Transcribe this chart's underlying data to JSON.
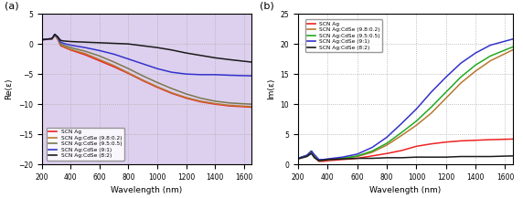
{
  "wavelength_min": 200,
  "wavelength_max": 1650,
  "panel_a": {
    "title": "(a)",
    "ylabel": "Re(ε)",
    "xlabel": "Wavelength (nm)",
    "ylim": [
      -20,
      5
    ],
    "yticks": [
      -20,
      -15,
      -10,
      -5,
      0,
      5
    ],
    "bg_color": "#ddd0ee",
    "series": [
      {
        "label": "SCN Ag",
        "color": "#ee2222",
        "lw": 1.1,
        "re_points": [
          [
            200,
            0.7
          ],
          [
            270,
            0.8
          ],
          [
            290,
            1.5
          ],
          [
            310,
            0.8
          ],
          [
            330,
            -0.3
          ],
          [
            350,
            -0.5
          ],
          [
            400,
            -1.0
          ],
          [
            500,
            -1.8
          ],
          [
            600,
            -2.8
          ],
          [
            700,
            -3.8
          ],
          [
            800,
            -4.9
          ],
          [
            900,
            -6.1
          ],
          [
            1000,
            -7.2
          ],
          [
            1100,
            -8.2
          ],
          [
            1200,
            -9.0
          ],
          [
            1300,
            -9.6
          ],
          [
            1400,
            -10.0
          ],
          [
            1500,
            -10.3
          ],
          [
            1650,
            -10.5
          ]
        ]
      },
      {
        "label": "SCN Ag:CdSe (9.8:0.2)",
        "color": "#b87830",
        "lw": 1.1,
        "re_points": [
          [
            200,
            0.7
          ],
          [
            270,
            0.8
          ],
          [
            290,
            1.5
          ],
          [
            310,
            0.8
          ],
          [
            330,
            -0.2
          ],
          [
            350,
            -0.4
          ],
          [
            400,
            -0.9
          ],
          [
            500,
            -1.6
          ],
          [
            600,
            -2.6
          ],
          [
            700,
            -3.6
          ],
          [
            800,
            -4.8
          ],
          [
            900,
            -6.0
          ],
          [
            1000,
            -7.1
          ],
          [
            1100,
            -8.1
          ],
          [
            1200,
            -8.9
          ],
          [
            1300,
            -9.5
          ],
          [
            1400,
            -9.9
          ],
          [
            1500,
            -10.2
          ],
          [
            1650,
            -10.4
          ]
        ]
      },
      {
        "label": "SCN Ag:CdSe (9.5:0.5)",
        "color": "#7a7850",
        "lw": 1.1,
        "re_points": [
          [
            200,
            0.7
          ],
          [
            270,
            0.8
          ],
          [
            290,
            1.5
          ],
          [
            310,
            0.9
          ],
          [
            330,
            0.0
          ],
          [
            350,
            -0.2
          ],
          [
            400,
            -0.6
          ],
          [
            500,
            -1.2
          ],
          [
            600,
            -2.0
          ],
          [
            700,
            -3.0
          ],
          [
            800,
            -4.1
          ],
          [
            900,
            -5.3
          ],
          [
            1000,
            -6.4
          ],
          [
            1100,
            -7.4
          ],
          [
            1200,
            -8.3
          ],
          [
            1300,
            -9.0
          ],
          [
            1400,
            -9.5
          ],
          [
            1500,
            -9.8
          ],
          [
            1650,
            -10.0
          ]
        ]
      },
      {
        "label": "SCN Ag:CdSe (9:1)",
        "color": "#3333cc",
        "lw": 1.1,
        "re_points": [
          [
            200,
            0.7
          ],
          [
            270,
            0.9
          ],
          [
            290,
            1.6
          ],
          [
            310,
            1.1
          ],
          [
            330,
            0.3
          ],
          [
            350,
            0.1
          ],
          [
            400,
            -0.2
          ],
          [
            500,
            -0.6
          ],
          [
            600,
            -1.1
          ],
          [
            700,
            -1.7
          ],
          [
            800,
            -2.5
          ],
          [
            900,
            -3.3
          ],
          [
            1000,
            -4.1
          ],
          [
            1100,
            -4.7
          ],
          [
            1200,
            -5.0
          ],
          [
            1300,
            -5.1
          ],
          [
            1400,
            -5.1
          ],
          [
            1500,
            -5.2
          ],
          [
            1650,
            -5.3
          ]
        ]
      },
      {
        "label": "SCN Ag:CdSe (8:2)",
        "color": "#1a1a1a",
        "lw": 1.1,
        "re_points": [
          [
            200,
            0.7
          ],
          [
            270,
            0.9
          ],
          [
            290,
            1.6
          ],
          [
            310,
            1.2
          ],
          [
            330,
            0.6
          ],
          [
            350,
            0.5
          ],
          [
            400,
            0.4
          ],
          [
            500,
            0.3
          ],
          [
            600,
            0.2
          ],
          [
            700,
            0.1
          ],
          [
            800,
            0.0
          ],
          [
            900,
            -0.3
          ],
          [
            1000,
            -0.6
          ],
          [
            1100,
            -1.0
          ],
          [
            1200,
            -1.5
          ],
          [
            1300,
            -1.9
          ],
          [
            1400,
            -2.3
          ],
          [
            1500,
            -2.6
          ],
          [
            1650,
            -3.0
          ]
        ]
      }
    ]
  },
  "panel_b": {
    "title": "(b)",
    "ylabel": "Im(ε)",
    "xlabel": "Wavelength (nm)",
    "ylim": [
      0,
      25
    ],
    "yticks": [
      0,
      5,
      10,
      15,
      20,
      25
    ],
    "series": [
      {
        "label": "SCN Ag",
        "color": "#ee2222",
        "lw": 1.1,
        "im_points": [
          [
            200,
            1.0
          ],
          [
            260,
            1.4
          ],
          [
            290,
            2.0
          ],
          [
            310,
            1.3
          ],
          [
            340,
            0.5
          ],
          [
            370,
            0.5
          ],
          [
            400,
            0.6
          ],
          [
            500,
            0.8
          ],
          [
            600,
            1.0
          ],
          [
            700,
            1.4
          ],
          [
            800,
            1.8
          ],
          [
            900,
            2.3
          ],
          [
            1000,
            3.0
          ],
          [
            1100,
            3.4
          ],
          [
            1200,
            3.7
          ],
          [
            1300,
            3.9
          ],
          [
            1400,
            4.0
          ],
          [
            1500,
            4.1
          ],
          [
            1650,
            4.2
          ]
        ]
      },
      {
        "label": "SCN Ag:CdSe (9.8:0.2)",
        "color": "#b87830",
        "lw": 1.1,
        "im_points": [
          [
            200,
            1.0
          ],
          [
            260,
            1.5
          ],
          [
            290,
            2.2
          ],
          [
            310,
            1.5
          ],
          [
            340,
            0.7
          ],
          [
            370,
            0.7
          ],
          [
            400,
            0.8
          ],
          [
            500,
            1.0
          ],
          [
            600,
            1.3
          ],
          [
            700,
            2.0
          ],
          [
            800,
            3.2
          ],
          [
            900,
            4.8
          ],
          [
            1000,
            6.5
          ],
          [
            1100,
            8.5
          ],
          [
            1200,
            11.0
          ],
          [
            1300,
            13.5
          ],
          [
            1400,
            15.5
          ],
          [
            1500,
            17.2
          ],
          [
            1650,
            19.0
          ]
        ]
      },
      {
        "label": "SCN Ag:CdSe (9.5:0.5)",
        "color": "#22aa22",
        "lw": 1.1,
        "im_points": [
          [
            200,
            1.0
          ],
          [
            260,
            1.5
          ],
          [
            290,
            2.2
          ],
          [
            310,
            1.5
          ],
          [
            340,
            0.7
          ],
          [
            370,
            0.7
          ],
          [
            400,
            0.8
          ],
          [
            500,
            1.0
          ],
          [
            600,
            1.4
          ],
          [
            700,
            2.2
          ],
          [
            800,
            3.5
          ],
          [
            900,
            5.3
          ],
          [
            1000,
            7.2
          ],
          [
            1100,
            9.5
          ],
          [
            1200,
            12.0
          ],
          [
            1300,
            14.5
          ],
          [
            1400,
            16.5
          ],
          [
            1500,
            18.0
          ],
          [
            1650,
            19.5
          ]
        ]
      },
      {
        "label": "SCN Ag:CdSe (9:1)",
        "color": "#3333cc",
        "lw": 1.1,
        "im_points": [
          [
            200,
            1.0
          ],
          [
            260,
            1.5
          ],
          [
            290,
            2.2
          ],
          [
            310,
            1.6
          ],
          [
            340,
            0.8
          ],
          [
            370,
            0.8
          ],
          [
            400,
            0.9
          ],
          [
            500,
            1.2
          ],
          [
            600,
            1.7
          ],
          [
            700,
            2.8
          ],
          [
            800,
            4.5
          ],
          [
            900,
            6.8
          ],
          [
            1000,
            9.2
          ],
          [
            1100,
            12.0
          ],
          [
            1200,
            14.5
          ],
          [
            1300,
            16.8
          ],
          [
            1400,
            18.5
          ],
          [
            1500,
            19.8
          ],
          [
            1650,
            20.8
          ]
        ]
      },
      {
        "label": "SCN Ag:CdSe (8:2)",
        "color": "#1a1a1a",
        "lw": 1.1,
        "im_points": [
          [
            200,
            0.9
          ],
          [
            260,
            1.3
          ],
          [
            290,
            1.8
          ],
          [
            310,
            1.1
          ],
          [
            340,
            0.6
          ],
          [
            370,
            0.7
          ],
          [
            400,
            0.8
          ],
          [
            500,
            0.9
          ],
          [
            600,
            1.0
          ],
          [
            700,
            1.0
          ],
          [
            800,
            1.1
          ],
          [
            900,
            1.1
          ],
          [
            1000,
            1.2
          ],
          [
            1100,
            1.2
          ],
          [
            1200,
            1.2
          ],
          [
            1300,
            1.3
          ],
          [
            1400,
            1.3
          ],
          [
            1500,
            1.3
          ],
          [
            1650,
            1.4
          ]
        ]
      }
    ]
  },
  "grid_color": "#aaaaaa",
  "grid_linestyle": ":",
  "grid_lw": 0.6
}
